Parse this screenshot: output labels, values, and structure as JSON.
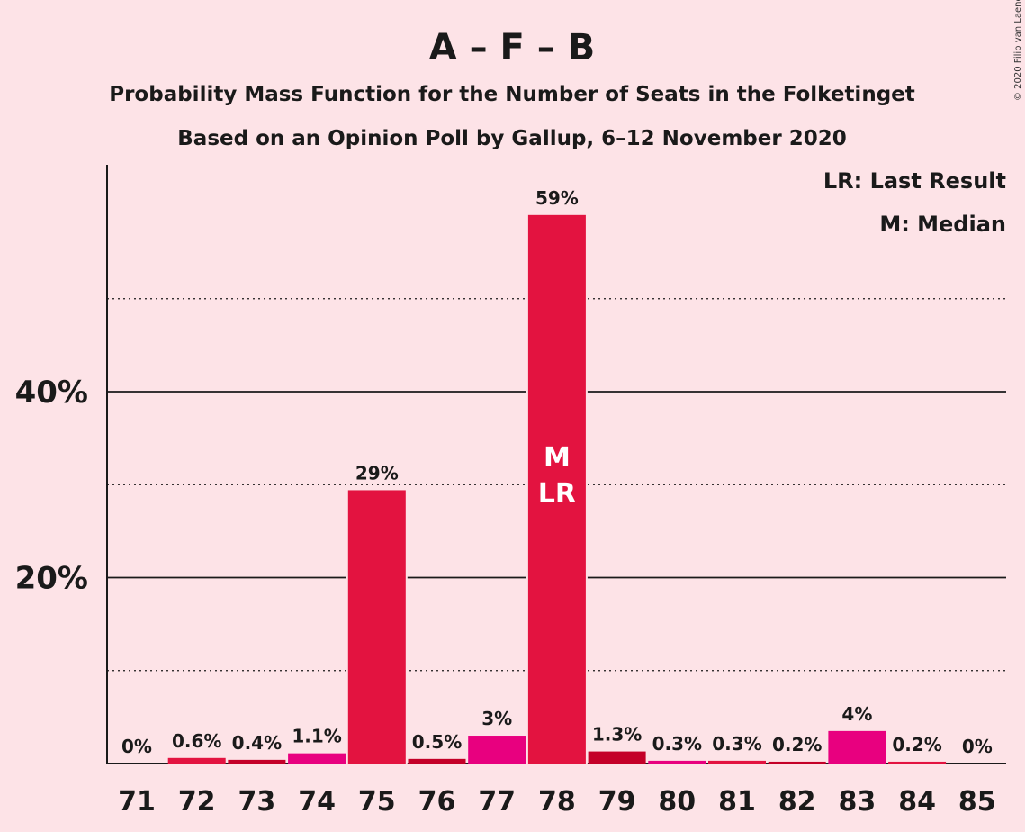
{
  "copyright": "© 2020 Filip van Laenen",
  "chart_data": {
    "type": "bar",
    "title": "A – F – B",
    "subtitle_line1": "Probability Mass Function for the Number of Seats in the Folketinget",
    "subtitle_line2": "Based on an Opinion Poll by Gallup, 6–12 November 2020",
    "legend": [
      "LR: Last Result",
      "M: Median"
    ],
    "legend_position": "top-right",
    "categories": [
      "71",
      "72",
      "73",
      "74",
      "75",
      "76",
      "77",
      "78",
      "79",
      "80",
      "81",
      "82",
      "83",
      "84",
      "85"
    ],
    "values": [
      0,
      0.6,
      0.4,
      1.1,
      29.4,
      0.5,
      3.0,
      59.0,
      1.3,
      0.3,
      0.3,
      0.2,
      3.5,
      0.2,
      0
    ],
    "value_labels": [
      "0%",
      "0.6%",
      "0.4%",
      "1.1%",
      "29%",
      "0.5%",
      "3%",
      "59%",
      "1.3%",
      "0.3%",
      "0.3%",
      "0.2%",
      "4%",
      "0.2%",
      "0%"
    ],
    "bar_colors": [
      "#e31340",
      "#e31340",
      "#c40028",
      "#e8007f",
      "#e31340",
      "#c40028",
      "#e8007f",
      "#e31340",
      "#c40028",
      "#e8007f",
      "#e31340",
      "#c40028",
      "#e8007f",
      "#e31340",
      "#c40028"
    ],
    "median_category": "78",
    "last_result_category": "78",
    "in_bar_markers": [
      "M",
      "LR"
    ],
    "ylim": [
      0,
      62
    ],
    "yticks_major": [
      20,
      40
    ],
    "ytick_labels": [
      "20%",
      "40%"
    ],
    "yticks_minor": [
      10,
      30,
      50
    ],
    "grid": true
  }
}
